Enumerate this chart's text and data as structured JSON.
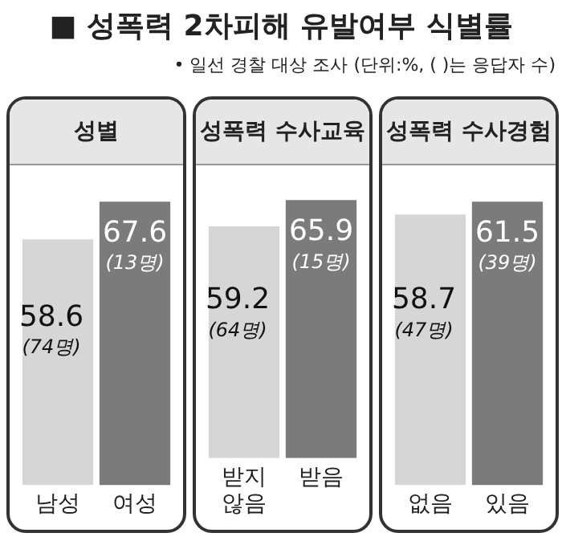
{
  "chart_data": [
    {
      "type": "other",
      "title": "■ 성폭력 2차피해 유발여부 식별률",
      "subtitle": "• 일선 경찰 대상 조사 (단위:%, ( )는 응답자 수)"
    },
    {
      "type": "bar",
      "title": "성별",
      "categories": [
        "남성",
        "여성"
      ],
      "values": [
        58.6,
        67.6
      ],
      "colors": [
        "#d6d6d6",
        "#7b7b7b"
      ],
      "value_labels": [
        "58.6\n(74명)",
        "67.6\n(13명)"
      ]
    },
    {
      "type": "bar",
      "title": "성폭력 수사교육",
      "categories": [
        "받지 않음",
        "받음"
      ],
      "values": [
        59.2,
        65.9
      ],
      "colors": [
        "#d6d6d6",
        "#7b7b7b"
      ],
      "value_labels": [
        "59.2\n(64명)",
        "65.9\n(15명)"
      ]
    },
    {
      "type": "bar",
      "title": "성폭력 수사경험",
      "categories": [
        "없음",
        "있음"
      ],
      "values": [
        58.7,
        61.5
      ],
      "colors": [
        "#d6d6d6",
        "#7b7b7b"
      ],
      "value_labels": [
        "58.7\n(47명)",
        "61.5\n(39명)"
      ]
    }
  ]
}
